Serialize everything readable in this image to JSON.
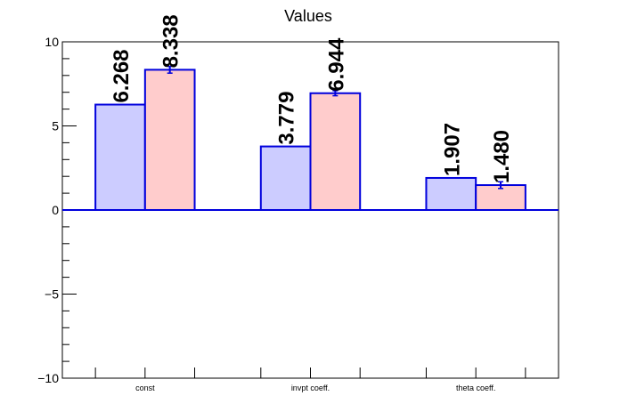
{
  "chart_data": {
    "type": "bar",
    "title": "Values",
    "categories": [
      "const",
      "invpt coeff.",
      "theta coeff."
    ],
    "series": [
      {
        "values": [
          6.268,
          3.779,
          1.907
        ],
        "labels": [
          "6.268",
          "3.779",
          "1.907"
        ],
        "errors": [
          0,
          0,
          0
        ],
        "fill": "#ccccff",
        "stroke": "#0000dd"
      },
      {
        "values": [
          8.338,
          6.944,
          1.48
        ],
        "labels": [
          "8.338",
          "6.944",
          "1.480"
        ],
        "errors": [
          0.2,
          0.15,
          0.2
        ],
        "fill": "#ffcccc",
        "stroke": "#0000dd"
      }
    ],
    "ylim": [
      -10,
      10
    ],
    "yticks": [
      -10,
      -5,
      0,
      5,
      10
    ],
    "ytick_labels": [
      "−10",
      "−5",
      "0",
      "5",
      "10"
    ],
    "grid": false,
    "legend": "none",
    "zero_line_color": "#0000dd"
  }
}
